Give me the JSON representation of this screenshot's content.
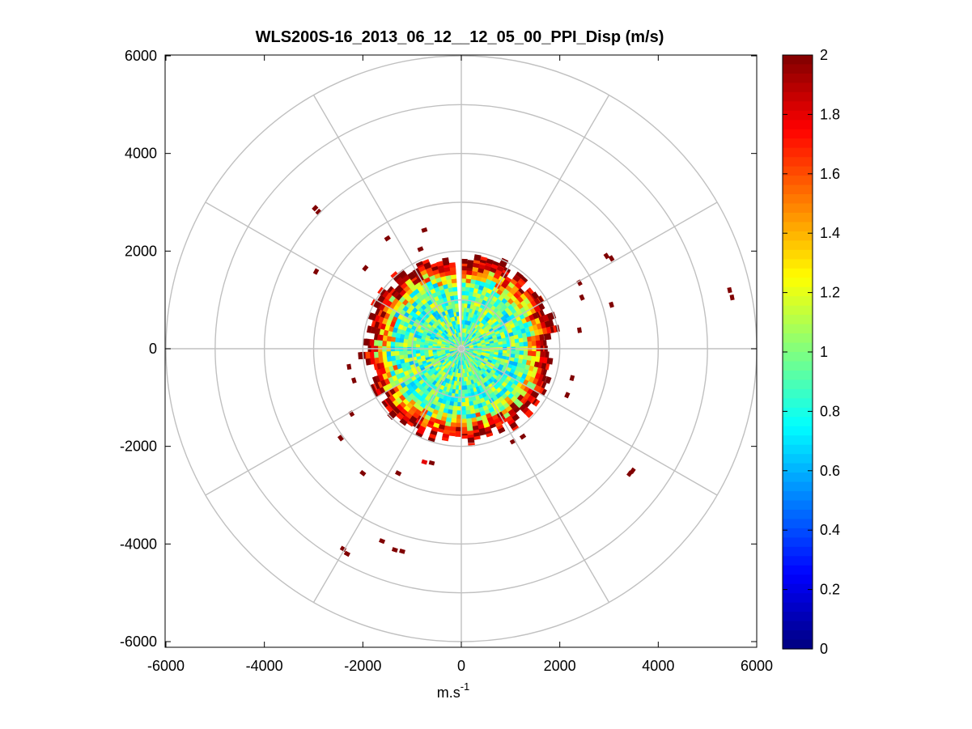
{
  "chart_data": {
    "type": "heatmap",
    "subtype": "polar-ppi",
    "title": "WLS200S-16_2013_06_12__12_05_00_PPI_Disp (m/s)",
    "xlabel": "m.s",
    "xlabel_superscript": "-1",
    "ylabel": "",
    "xlim": [
      -6000,
      6000
    ],
    "ylim": [
      -6000,
      6000
    ],
    "x_ticks": [
      "-6000",
      "-4000",
      "-2000",
      "0",
      "2000",
      "4000",
      "6000"
    ],
    "y_ticks": [
      "6000",
      "4000",
      "2000",
      "0",
      "-2000",
      "-4000",
      "-6000"
    ],
    "x_tick_values": [
      -6000,
      -4000,
      -2000,
      0,
      2000,
      4000,
      6000
    ],
    "y_tick_values": [
      6000,
      4000,
      2000,
      0,
      -2000,
      -4000,
      -6000
    ],
    "polar_grid": {
      "rings": [
        1000,
        2000,
        3000,
        4000,
        5000,
        6000
      ],
      "spokes_deg": [
        0,
        30,
        60,
        90,
        120,
        150,
        180,
        210,
        240,
        270,
        300,
        330
      ],
      "color": "#c0c0c0"
    },
    "colorbar": {
      "colormap": "jet",
      "min": 0,
      "max": 2,
      "ticks": [
        "2",
        "1.8",
        "1.6",
        "1.4",
        "1.2",
        "1",
        "0.8",
        "0.6",
        "0.4",
        "0.2",
        "0"
      ],
      "tick_values": [
        2,
        1.8,
        1.6,
        1.4,
        1.2,
        1,
        0.8,
        0.6,
        0.4,
        0.2,
        0
      ]
    },
    "data_description": {
      "core_radius_max": 2050,
      "core_typical_value": 0.9,
      "edge_value": 2,
      "gap_azimuth_deg": [
        -5,
        0
      ]
    },
    "outlier_segments": [
      {
        "x": -2970,
        "y": 2880,
        "value": 2
      },
      {
        "x": -2900,
        "y": 2800,
        "value": 2
      },
      {
        "x": -750,
        "y": 2430,
        "value": 2
      },
      {
        "x": -1500,
        "y": 2260,
        "value": 2
      },
      {
        "x": -830,
        "y": 2040,
        "value": 2
      },
      {
        "x": -2950,
        "y": 1580,
        "value": 2
      },
      {
        "x": -1950,
        "y": 1650,
        "value": 2
      },
      {
        "x": 2950,
        "y": 1900,
        "value": 2
      },
      {
        "x": 3050,
        "y": 1850,
        "value": 2
      },
      {
        "x": 5450,
        "y": 1200,
        "value": 2
      },
      {
        "x": 5500,
        "y": 1050,
        "value": 2
      },
      {
        "x": 3050,
        "y": 900,
        "value": 2
      },
      {
        "x": 2450,
        "y": 1050,
        "value": 2
      },
      {
        "x": 2400,
        "y": 1350,
        "value": 2
      },
      {
        "x": 2400,
        "y": 380,
        "value": 2
      },
      {
        "x": -2280,
        "y": -370,
        "value": 2
      },
      {
        "x": -2180,
        "y": -650,
        "value": 2
      },
      {
        "x": -2230,
        "y": -1330,
        "value": 2
      },
      {
        "x": -2450,
        "y": -1830,
        "value": 2
      },
      {
        "x": -2000,
        "y": -2550,
        "value": 2
      },
      {
        "x": -1280,
        "y": -2550,
        "value": 2
      },
      {
        "x": 3480,
        "y": -2500,
        "value": 2
      },
      {
        "x": 3420,
        "y": -2560,
        "value": 2
      },
      {
        "x": -2400,
        "y": -4100,
        "value": 2
      },
      {
        "x": -2320,
        "y": -4200,
        "value": 2
      },
      {
        "x": -1610,
        "y": -3940,
        "value": 2
      },
      {
        "x": -1350,
        "y": -4120,
        "value": 2
      },
      {
        "x": -1200,
        "y": -4150,
        "value": 2
      },
      {
        "x": -750,
        "y": -2320,
        "value": 1.8
      },
      {
        "x": -600,
        "y": -2340,
        "value": 2
      },
      {
        "x": 1050,
        "y": -1900,
        "value": 2
      },
      {
        "x": 1250,
        "y": -1800,
        "value": 2
      },
      {
        "x": 2250,
        "y": -600,
        "value": 2
      },
      {
        "x": 2150,
        "y": -950,
        "value": 2
      }
    ]
  }
}
